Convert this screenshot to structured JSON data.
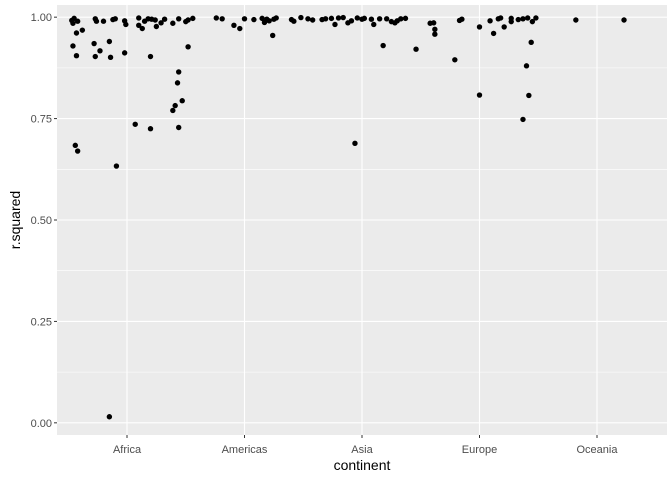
{
  "chart_data": {
    "type": "scatter",
    "jitter": true,
    "xlabel": "continent",
    "ylabel": "r.squared",
    "categories": [
      "Africa",
      "Americas",
      "Asia",
      "Europe",
      "Oceania"
    ],
    "ylim": [
      -0.03,
      1.03
    ],
    "yticks": [
      0.0,
      0.25,
      0.5,
      0.75,
      1.0
    ],
    "ytick_labels": [
      "0.00",
      "0.25",
      "0.50",
      "0.75",
      "1.00"
    ],
    "grid": true,
    "panel_color": "#ebebeb",
    "point_color": "#000000",
    "points": [
      {
        "x": "Africa",
        "dx": -0.47,
        "y": 0.992
      },
      {
        "x": "Africa",
        "dx": -0.46,
        "y": 0.985
      },
      {
        "x": "Africa",
        "dx": -0.45,
        "y": 0.997
      },
      {
        "x": "Africa",
        "dx": -0.42,
        "y": 0.99
      },
      {
        "x": "Africa",
        "dx": -0.46,
        "y": 0.929
      },
      {
        "x": "Africa",
        "dx": -0.43,
        "y": 0.905
      },
      {
        "x": "Africa",
        "dx": -0.43,
        "y": 0.961
      },
      {
        "x": "Africa",
        "dx": -0.38,
        "y": 0.968
      },
      {
        "x": "Africa",
        "dx": -0.44,
        "y": 0.684
      },
      {
        "x": "Africa",
        "dx": -0.42,
        "y": 0.67
      },
      {
        "x": "Africa",
        "dx": -0.27,
        "y": 0.996
      },
      {
        "x": "Africa",
        "dx": -0.26,
        "y": 0.99
      },
      {
        "x": "Africa",
        "dx": -0.28,
        "y": 0.935
      },
      {
        "x": "Africa",
        "dx": -0.27,
        "y": 0.903
      },
      {
        "x": "Africa",
        "dx": -0.23,
        "y": 0.917
      },
      {
        "x": "Africa",
        "dx": -0.2,
        "y": 0.99
      },
      {
        "x": "Africa",
        "dx": -0.15,
        "y": 0.94
      },
      {
        "x": "Africa",
        "dx": -0.14,
        "y": 0.901
      },
      {
        "x": "Africa",
        "dx": -0.15,
        "y": 0.015
      },
      {
        "x": "Africa",
        "dx": -0.12,
        "y": 0.994
      },
      {
        "x": "Africa",
        "dx": -0.1,
        "y": 0.996
      },
      {
        "x": "Africa",
        "dx": -0.09,
        "y": 0.633
      },
      {
        "x": "Africa",
        "dx": -0.02,
        "y": 0.991
      },
      {
        "x": "Africa",
        "dx": -0.01,
        "y": 0.982
      },
      {
        "x": "Africa",
        "dx": -0.02,
        "y": 0.912
      },
      {
        "x": "Africa",
        "dx": 0.07,
        "y": 0.736
      },
      {
        "x": "Africa",
        "dx": 0.1,
        "y": 0.998
      },
      {
        "x": "Africa",
        "dx": 0.1,
        "y": 0.98
      },
      {
        "x": "Africa",
        "dx": 0.13,
        "y": 0.972
      },
      {
        "x": "Africa",
        "dx": 0.15,
        "y": 0.99
      },
      {
        "x": "Africa",
        "dx": 0.18,
        "y": 0.996
      },
      {
        "x": "Africa",
        "dx": 0.21,
        "y": 0.995
      },
      {
        "x": "Africa",
        "dx": 0.2,
        "y": 0.903
      },
      {
        "x": "Africa",
        "dx": 0.2,
        "y": 0.725
      },
      {
        "x": "Africa",
        "dx": 0.24,
        "y": 0.993
      },
      {
        "x": "Africa",
        "dx": 0.25,
        "y": 0.977
      },
      {
        "x": "Africa",
        "dx": 0.29,
        "y": 0.986
      },
      {
        "x": "Africa",
        "dx": 0.32,
        "y": 0.995
      },
      {
        "x": "Africa",
        "dx": 0.39,
        "y": 0.985
      },
      {
        "x": "Africa",
        "dx": 0.39,
        "y": 0.77
      },
      {
        "x": "Africa",
        "dx": 0.41,
        "y": 0.782
      },
      {
        "x": "Africa",
        "dx": 0.44,
        "y": 0.865
      },
      {
        "x": "Africa",
        "dx": 0.43,
        "y": 0.838
      },
      {
        "x": "Africa",
        "dx": 0.44,
        "y": 0.728
      },
      {
        "x": "Africa",
        "dx": 0.44,
        "y": 0.996
      },
      {
        "x": "Africa",
        "dx": 0.47,
        "y": 0.794
      },
      {
        "x": "Africa",
        "dx": 0.5,
        "y": 0.989
      },
      {
        "x": "Africa",
        "dx": 0.52,
        "y": 0.993
      },
      {
        "x": "Africa",
        "dx": 0.52,
        "y": 0.927
      },
      {
        "x": "Africa",
        "dx": 0.56,
        "y": 0.997
      },
      {
        "x": "Americas",
        "dx": -0.24,
        "y": 0.998
      },
      {
        "x": "Americas",
        "dx": -0.19,
        "y": 0.996
      },
      {
        "x": "Americas",
        "dx": -0.09,
        "y": 0.98
      },
      {
        "x": "Americas",
        "dx": -0.04,
        "y": 0.972
      },
      {
        "x": "Americas",
        "dx": 0.0,
        "y": 0.996
      },
      {
        "x": "Americas",
        "dx": 0.08,
        "y": 0.994
      },
      {
        "x": "Americas",
        "dx": 0.15,
        "y": 0.997
      },
      {
        "x": "Americas",
        "dx": 0.17,
        "y": 0.987
      },
      {
        "x": "Americas",
        "dx": 0.19,
        "y": 0.995
      },
      {
        "x": "Americas",
        "dx": 0.21,
        "y": 0.991
      },
      {
        "x": "Americas",
        "dx": 0.24,
        "y": 0.955
      },
      {
        "x": "Americas",
        "dx": 0.25,
        "y": 0.995
      },
      {
        "x": "Americas",
        "dx": 0.27,
        "y": 0.998
      },
      {
        "x": "Americas",
        "dx": 0.4,
        "y": 0.994
      },
      {
        "x": "Americas",
        "dx": 0.42,
        "y": 0.99
      },
      {
        "x": "Americas",
        "dx": 0.48,
        "y": 0.999
      },
      {
        "x": "Americas",
        "dx": 0.54,
        "y": 0.996
      },
      {
        "x": "Americas",
        "dx": 0.58,
        "y": 0.993
      },
      {
        "x": "Asia",
        "dx": -0.34,
        "y": 0.994
      },
      {
        "x": "Asia",
        "dx": -0.31,
        "y": 0.996
      },
      {
        "x": "Asia",
        "dx": -0.26,
        "y": 0.997
      },
      {
        "x": "Asia",
        "dx": -0.23,
        "y": 0.982
      },
      {
        "x": "Asia",
        "dx": -0.2,
        "y": 0.998
      },
      {
        "x": "Asia",
        "dx": -0.16,
        "y": 0.999
      },
      {
        "x": "Asia",
        "dx": -0.12,
        "y": 0.986
      },
      {
        "x": "Asia",
        "dx": -0.09,
        "y": 0.991
      },
      {
        "x": "Asia",
        "dx": -0.06,
        "y": 0.689
      },
      {
        "x": "Asia",
        "dx": -0.04,
        "y": 0.998
      },
      {
        "x": "Asia",
        "dx": 0.0,
        "y": 0.995
      },
      {
        "x": "Asia",
        "dx": 0.02,
        "y": 0.997
      },
      {
        "x": "Asia",
        "dx": 0.08,
        "y": 0.995
      },
      {
        "x": "Asia",
        "dx": 0.1,
        "y": 0.982
      },
      {
        "x": "Asia",
        "dx": 0.15,
        "y": 0.996
      },
      {
        "x": "Asia",
        "dx": 0.18,
        "y": 0.93
      },
      {
        "x": "Asia",
        "dx": 0.21,
        "y": 0.996
      },
      {
        "x": "Asia",
        "dx": 0.25,
        "y": 0.989
      },
      {
        "x": "Asia",
        "dx": 0.28,
        "y": 0.986
      },
      {
        "x": "Asia",
        "dx": 0.3,
        "y": 0.991
      },
      {
        "x": "Asia",
        "dx": 0.33,
        "y": 0.996
      },
      {
        "x": "Asia",
        "dx": 0.37,
        "y": 0.997
      },
      {
        "x": "Asia",
        "dx": 0.46,
        "y": 0.921
      },
      {
        "x": "Asia",
        "dx": 0.58,
        "y": 0.985
      },
      {
        "x": "Asia",
        "dx": 0.61,
        "y": 0.986
      },
      {
        "x": "Asia",
        "dx": 0.62,
        "y": 0.97
      },
      {
        "x": "Asia",
        "dx": 0.62,
        "y": 0.958
      },
      {
        "x": "Europe",
        "dx": -0.21,
        "y": 0.895
      },
      {
        "x": "Europe",
        "dx": -0.17,
        "y": 0.992
      },
      {
        "x": "Europe",
        "dx": -0.15,
        "y": 0.995
      },
      {
        "x": "Europe",
        "dx": 0.0,
        "y": 0.808
      },
      {
        "x": "Europe",
        "dx": 0.0,
        "y": 0.976
      },
      {
        "x": "Europe",
        "dx": 0.09,
        "y": 0.991
      },
      {
        "x": "Europe",
        "dx": 0.12,
        "y": 0.96
      },
      {
        "x": "Europe",
        "dx": 0.16,
        "y": 0.996
      },
      {
        "x": "Europe",
        "dx": 0.18,
        "y": 0.998
      },
      {
        "x": "Europe",
        "dx": 0.21,
        "y": 0.976
      },
      {
        "x": "Europe",
        "dx": 0.27,
        "y": 0.997
      },
      {
        "x": "Europe",
        "dx": 0.27,
        "y": 0.989
      },
      {
        "x": "Europe",
        "dx": 0.33,
        "y": 0.994
      },
      {
        "x": "Europe",
        "dx": 0.37,
        "y": 0.996
      },
      {
        "x": "Europe",
        "dx": 0.37,
        "y": 0.748
      },
      {
        "x": "Europe",
        "dx": 0.4,
        "y": 0.88
      },
      {
        "x": "Europe",
        "dx": 0.41,
        "y": 0.998
      },
      {
        "x": "Europe",
        "dx": 0.42,
        "y": 0.807
      },
      {
        "x": "Europe",
        "dx": 0.44,
        "y": 0.938
      },
      {
        "x": "Europe",
        "dx": 0.45,
        "y": 0.989
      },
      {
        "x": "Europe",
        "dx": 0.48,
        "y": 0.998
      },
      {
        "x": "Oceania",
        "dx": -0.18,
        "y": 0.993
      },
      {
        "x": "Oceania",
        "dx": 0.23,
        "y": 0.993
      }
    ]
  }
}
